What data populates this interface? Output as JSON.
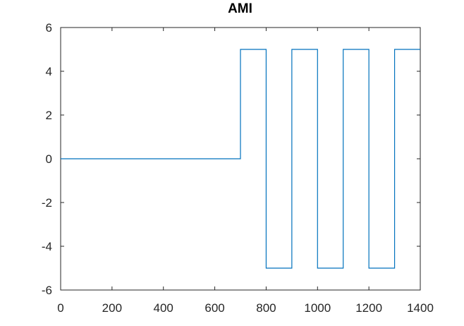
{
  "chart_data": {
    "type": "line",
    "title": "AMI",
    "xlabel": "",
    "ylabel": "",
    "xlim": [
      0,
      1400
    ],
    "ylim": [
      -6,
      6
    ],
    "xticks": [
      0,
      200,
      400,
      600,
      800,
      1000,
      1200,
      1400
    ],
    "yticks": [
      -6,
      -4,
      -2,
      0,
      2,
      4,
      6
    ],
    "grid": false,
    "line_color": "#0072bd",
    "series": [
      {
        "x": [
          0,
          700,
          700,
          800,
          800,
          900,
          900,
          1000,
          1000,
          1100,
          1100,
          1200,
          1200,
          1300,
          1300,
          1400
        ],
        "y": [
          0,
          0,
          5,
          5,
          -5,
          -5,
          5,
          5,
          -5,
          -5,
          5,
          5,
          -5,
          -5,
          5,
          5
        ]
      }
    ]
  }
}
